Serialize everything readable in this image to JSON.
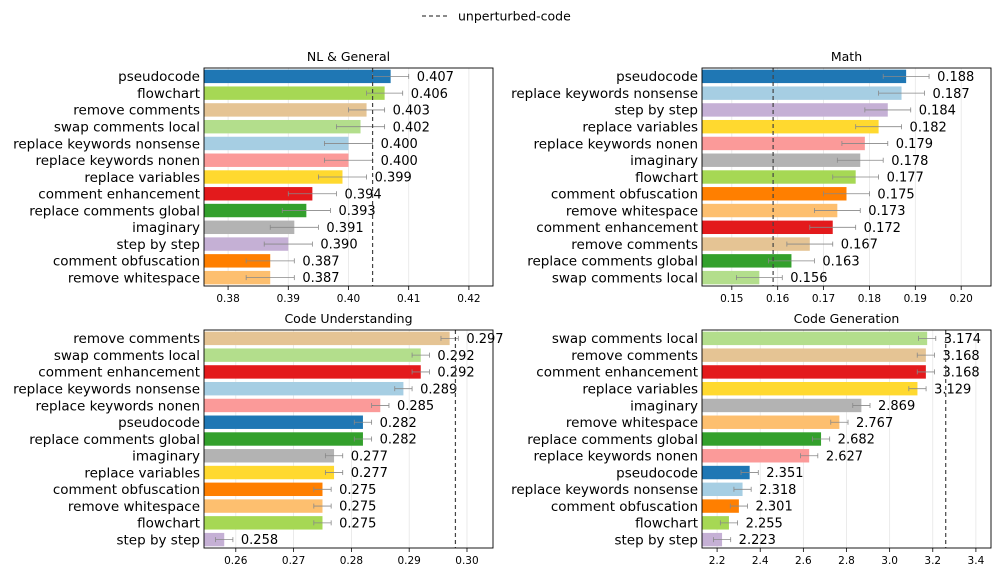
{
  "legend": {
    "label": "unperturbed-code"
  },
  "chart_data": [
    {
      "type": "bar",
      "orientation": "horizontal",
      "title": "NL & General",
      "xlim": [
        0.376,
        0.424
      ],
      "xticks": [
        0.38,
        0.39,
        0.4,
        0.41,
        0.42
      ],
      "tick_decimals": 2,
      "value_decimals": 3,
      "reference": 0.404,
      "grid": "x",
      "bars": [
        {
          "label": "pseudocode",
          "value": 0.407,
          "err": 0.003,
          "color": "#1f77b4"
        },
        {
          "label": "flowchart",
          "value": 0.406,
          "err": 0.003,
          "color": "#a6d854"
        },
        {
          "label": "remove comments",
          "value": 0.403,
          "err": 0.003,
          "color": "#e5c494"
        },
        {
          "label": "swap comments local",
          "value": 0.402,
          "err": 0.004,
          "color": "#b3de8c"
        },
        {
          "label": "replace keywords nonsense",
          "value": 0.4,
          "err": 0.004,
          "color": "#a6cee3"
        },
        {
          "label": "replace keywords nonen",
          "value": 0.4,
          "err": 0.004,
          "color": "#fb9a99"
        },
        {
          "label": "replace variables",
          "value": 0.399,
          "err": 0.004,
          "color": "#ffd92f"
        },
        {
          "label": "comment enhancement",
          "value": 0.394,
          "err": 0.004,
          "color": "#e31a1c"
        },
        {
          "label": "replace comments global",
          "value": 0.393,
          "err": 0.004,
          "color": "#33a02c"
        },
        {
          "label": "imaginary",
          "value": 0.391,
          "err": 0.004,
          "color": "#b3b3b3"
        },
        {
          "label": "step by step",
          "value": 0.39,
          "err": 0.004,
          "color": "#c5b0d5"
        },
        {
          "label": "comment obfuscation",
          "value": 0.387,
          "err": 0.004,
          "color": "#ff7f00"
        },
        {
          "label": "remove whitespace",
          "value": 0.387,
          "err": 0.004,
          "color": "#fdbf6f"
        }
      ]
    },
    {
      "type": "bar",
      "orientation": "horizontal",
      "title": "Math",
      "xlim": [
        0.1435,
        0.2065
      ],
      "xticks": [
        0.15,
        0.16,
        0.17,
        0.18,
        0.19,
        0.2
      ],
      "tick_decimals": 2,
      "value_decimals": 3,
      "reference": 0.159,
      "grid": "x",
      "bars": [
        {
          "label": "pseudocode",
          "value": 0.188,
          "err": 0.005,
          "color": "#1f77b4"
        },
        {
          "label": "replace keywords nonsense",
          "value": 0.187,
          "err": 0.005,
          "color": "#a6cee3"
        },
        {
          "label": "step by step",
          "value": 0.184,
          "err": 0.005,
          "color": "#c5b0d5"
        },
        {
          "label": "replace variables",
          "value": 0.182,
          "err": 0.005,
          "color": "#ffd92f"
        },
        {
          "label": "replace keywords nonen",
          "value": 0.179,
          "err": 0.005,
          "color": "#fb9a99"
        },
        {
          "label": "imaginary",
          "value": 0.178,
          "err": 0.005,
          "color": "#b3b3b3"
        },
        {
          "label": "flowchart",
          "value": 0.177,
          "err": 0.005,
          "color": "#a6d854"
        },
        {
          "label": "comment obfuscation",
          "value": 0.175,
          "err": 0.005,
          "color": "#ff7f00"
        },
        {
          "label": "remove whitespace",
          "value": 0.173,
          "err": 0.005,
          "color": "#fdbf6f"
        },
        {
          "label": "comment enhancement",
          "value": 0.172,
          "err": 0.005,
          "color": "#e31a1c"
        },
        {
          "label": "remove comments",
          "value": 0.167,
          "err": 0.005,
          "color": "#e5c494"
        },
        {
          "label": "replace comments global",
          "value": 0.163,
          "err": 0.005,
          "color": "#33a02c"
        },
        {
          "label": "swap comments local",
          "value": 0.156,
          "err": 0.005,
          "color": "#b3de8c"
        }
      ]
    },
    {
      "type": "bar",
      "orientation": "horizontal",
      "title": "Code Understanding",
      "xlim": [
        0.2545,
        0.3045
      ],
      "xticks": [
        0.26,
        0.27,
        0.28,
        0.29,
        0.3
      ],
      "tick_decimals": 2,
      "value_decimals": 3,
      "reference": 0.298,
      "grid": "x",
      "bars": [
        {
          "label": "remove comments",
          "value": 0.297,
          "err": 0.0015,
          "color": "#e5c494"
        },
        {
          "label": "swap comments local",
          "value": 0.292,
          "err": 0.0015,
          "color": "#b3de8c"
        },
        {
          "label": "comment enhancement",
          "value": 0.292,
          "err": 0.0015,
          "color": "#e31a1c"
        },
        {
          "label": "replace keywords nonsense",
          "value": 0.289,
          "err": 0.0015,
          "color": "#a6cee3"
        },
        {
          "label": "replace keywords nonen",
          "value": 0.285,
          "err": 0.0015,
          "color": "#fb9a99"
        },
        {
          "label": "pseudocode",
          "value": 0.282,
          "err": 0.0015,
          "color": "#1f77b4"
        },
        {
          "label": "replace comments global",
          "value": 0.282,
          "err": 0.0015,
          "color": "#33a02c"
        },
        {
          "label": "imaginary",
          "value": 0.277,
          "err": 0.0015,
          "color": "#b3b3b3"
        },
        {
          "label": "replace variables",
          "value": 0.277,
          "err": 0.0015,
          "color": "#ffd92f"
        },
        {
          "label": "comment obfuscation",
          "value": 0.275,
          "err": 0.0015,
          "color": "#ff7f00"
        },
        {
          "label": "remove whitespace",
          "value": 0.275,
          "err": 0.0015,
          "color": "#fdbf6f"
        },
        {
          "label": "flowchart",
          "value": 0.275,
          "err": 0.0015,
          "color": "#a6d854"
        },
        {
          "label": "step by step",
          "value": 0.258,
          "err": 0.0015,
          "color": "#c5b0d5"
        }
      ]
    },
    {
      "type": "bar",
      "orientation": "horizontal",
      "title": "Code Generation",
      "xlim": [
        2.13,
        3.47
      ],
      "xticks": [
        2.2,
        2.4,
        2.6,
        2.8,
        3.0,
        3.2,
        3.4
      ],
      "tick_decimals": 1,
      "value_decimals": 3,
      "reference": 3.26,
      "grid": "x",
      "bars": [
        {
          "label": "swap comments local",
          "value": 3.174,
          "err": 0.04,
          "color": "#b3de8c"
        },
        {
          "label": "remove comments",
          "value": 3.168,
          "err": 0.04,
          "color": "#e5c494"
        },
        {
          "label": "comment enhancement",
          "value": 3.168,
          "err": 0.04,
          "color": "#e31a1c"
        },
        {
          "label": "replace variables",
          "value": 3.129,
          "err": 0.04,
          "color": "#ffd92f"
        },
        {
          "label": "imaginary",
          "value": 2.869,
          "err": 0.04,
          "color": "#b3b3b3"
        },
        {
          "label": "remove whitespace",
          "value": 2.767,
          "err": 0.04,
          "color": "#fdbf6f"
        },
        {
          "label": "replace comments global",
          "value": 2.682,
          "err": 0.04,
          "color": "#33a02c"
        },
        {
          "label": "replace keywords nonen",
          "value": 2.627,
          "err": 0.04,
          "color": "#fb9a99"
        },
        {
          "label": "pseudocode",
          "value": 2.351,
          "err": 0.04,
          "color": "#1f77b4"
        },
        {
          "label": "replace keywords nonsense",
          "value": 2.318,
          "err": 0.04,
          "color": "#a6cee3"
        },
        {
          "label": "comment obfuscation",
          "value": 2.301,
          "err": 0.04,
          "color": "#ff7f00"
        },
        {
          "label": "flowchart",
          "value": 2.255,
          "err": 0.04,
          "color": "#a6d854"
        },
        {
          "label": "step by step",
          "value": 2.223,
          "err": 0.04,
          "color": "#c5b0d5"
        }
      ]
    }
  ]
}
